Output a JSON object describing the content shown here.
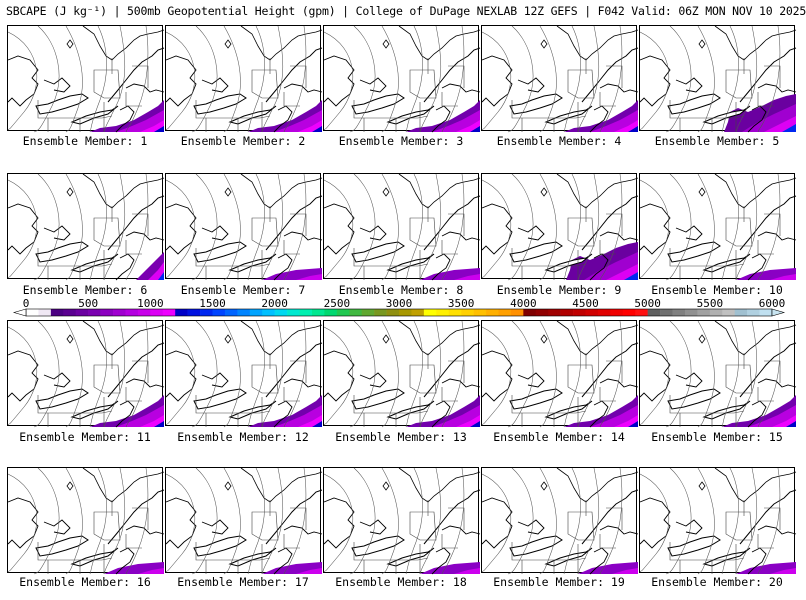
{
  "title": "SBCAPE (J kg⁻¹) | 500mb Geopotential Height (gpm) | College of DuPage NEXLAB 12Z GEFS | F042 Valid: 06Z MON NOV 10 2025",
  "members": [
    {
      "label": "Ensemble Member: 1",
      "cape": "medium"
    },
    {
      "label": "Ensemble Member: 2",
      "cape": "medium"
    },
    {
      "label": "Ensemble Member: 3",
      "cape": "medium"
    },
    {
      "label": "Ensemble Member: 4",
      "cape": "medium"
    },
    {
      "label": "Ensemble Member: 5",
      "cape": "high"
    },
    {
      "label": "Ensemble Member: 6",
      "cape": "corner"
    },
    {
      "label": "Ensemble Member: 7",
      "cape": "low"
    },
    {
      "label": "Ensemble Member: 8",
      "cape": "low"
    },
    {
      "label": "Ensemble Member: 9",
      "cape": "high"
    },
    {
      "label": "Ensemble Member: 10",
      "cape": "low"
    },
    {
      "label": "Ensemble Member: 11",
      "cape": "medium"
    },
    {
      "label": "Ensemble Member: 12",
      "cape": "medium"
    },
    {
      "label": "Ensemble Member: 13",
      "cape": "medium"
    },
    {
      "label": "Ensemble Member: 14",
      "cape": "medium"
    },
    {
      "label": "Ensemble Member: 15",
      "cape": "medium"
    },
    {
      "label": "Ensemble Member: 16",
      "cape": "low"
    },
    {
      "label": "Ensemble Member: 17",
      "cape": "low"
    },
    {
      "label": "Ensemble Member: 18",
      "cape": "low"
    },
    {
      "label": "Ensemble Member: 19",
      "cape": "low"
    },
    {
      "label": "Ensemble Member: 20",
      "cape": "low"
    }
  ],
  "colorbar": {
    "ticks": [
      "0",
      "500",
      "1000",
      "1500",
      "2000",
      "2500",
      "3000",
      "3500",
      "4000",
      "4500",
      "5000",
      "5500",
      "6000"
    ],
    "min": 0,
    "max": 6000,
    "colors": [
      "#ffffff",
      "#f0e8f4",
      "#4b0082",
      "#5a0090",
      "#6a00a0",
      "#7a00b0",
      "#8c00c0",
      "#a000d0",
      "#b400e0",
      "#c800ea",
      "#dc00f4",
      "#ee00ff",
      "#0000c8",
      "#0010e0",
      "#0028f0",
      "#0044ff",
      "#0064ff",
      "#0084ff",
      "#00a4ff",
      "#00c0ff",
      "#00d8f0",
      "#00e8d0",
      "#00f0b0",
      "#00e890",
      "#00d870",
      "#20c850",
      "#40b840",
      "#60a830",
      "#789820",
      "#909010",
      "#a89800",
      "#c0a000",
      "#ffff00",
      "#fff000",
      "#ffe000",
      "#ffd000",
      "#ffc000",
      "#ffb000",
      "#ffa000",
      "#ff9000",
      "#800000",
      "#900000",
      "#a00000",
      "#b00000",
      "#c00000",
      "#d00000",
      "#e00000",
      "#f00000",
      "#ff0000",
      "#ff1010",
      "#606060",
      "#707070",
      "#808080",
      "#909090",
      "#a0a0a0",
      "#b0b0b0",
      "#c0c0c0",
      "#a0c0d0",
      "#b0d0e0",
      "#c0e0f0"
    ]
  }
}
